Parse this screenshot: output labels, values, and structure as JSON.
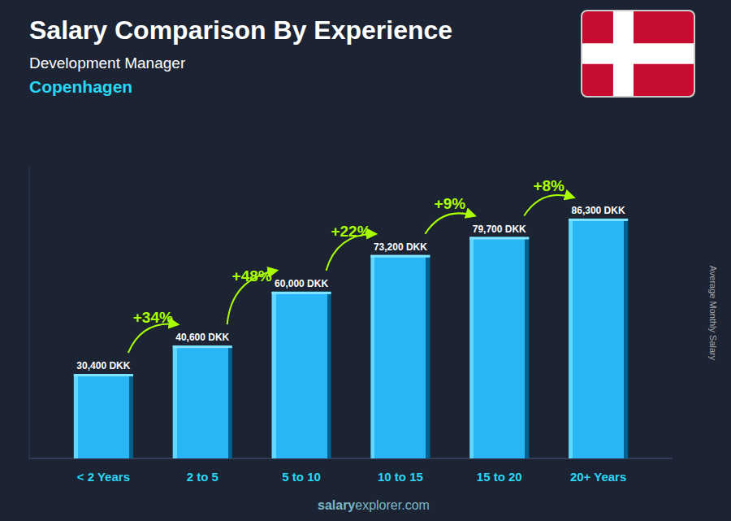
{
  "chart_data": {
    "type": "bar",
    "title": "Salary Comparison By Experience",
    "subtitle": "Development Manager",
    "city": "Copenhagen",
    "ylabel": "Average Monthly Salary",
    "categories": [
      "< 2 Years",
      "2 to 5",
      "5 to 10",
      "10 to 15",
      "15 to 20",
      "20+ Years"
    ],
    "values": [
      30400,
      40600,
      60000,
      73200,
      79700,
      86300
    ],
    "value_labels": [
      "30,400 DKK",
      "40,600 DKK",
      "60,000 DKK",
      "73,200 DKK",
      "79,700 DKK",
      "86,300 DKK"
    ],
    "data_labels": true,
    "color": "#29b6f6",
    "ylim": [
      0,
      105000
    ],
    "tick_labels": "x",
    "annotations": [
      "+34%",
      "+48%",
      "+22%",
      "+9%",
      "+8%"
    ],
    "watermark": [
      "salary",
      "explorer.com"
    ]
  }
}
